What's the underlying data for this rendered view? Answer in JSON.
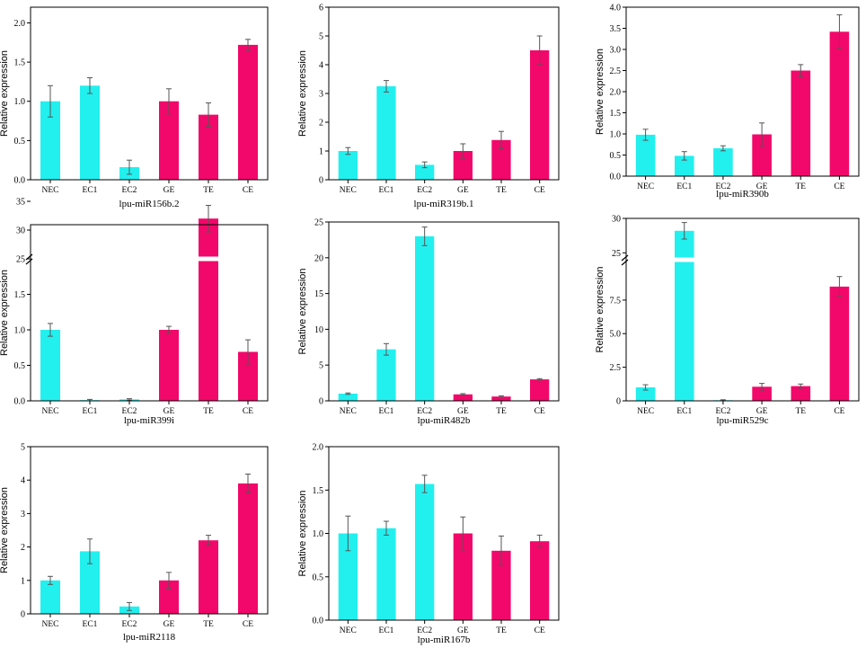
{
  "colors": {
    "group_a": "#22f0ef",
    "group_b": "#f2086a",
    "axis": "#000000",
    "error": "#555555"
  },
  "chart_data": [
    {
      "type": "bar",
      "title": "lpu-miR156b.2",
      "ylabel": "Relative expression",
      "categories": [
        "NEC",
        "EC1",
        "EC2",
        "GE",
        "TE",
        "CE"
      ],
      "values": [
        1.0,
        1.2,
        0.16,
        1.0,
        0.83,
        1.72
      ],
      "errors": [
        0.2,
        0.1,
        0.09,
        0.16,
        0.15,
        0.07
      ],
      "ylim": [
        0,
        2.2
      ],
      "yticks": [
        "0.0",
        "0.5",
        "1.0",
        "1.5",
        "2.0"
      ]
    },
    {
      "type": "bar",
      "title": "lpu-miR319b.1",
      "ylabel": "Relative expression",
      "categories": [
        "NEC",
        "EC1",
        "EC2",
        "GE",
        "TE",
        "CE"
      ],
      "values": [
        1.0,
        3.25,
        0.52,
        1.0,
        1.38,
        4.5
      ],
      "errors": [
        0.12,
        0.2,
        0.1,
        0.25,
        0.3,
        0.5
      ],
      "ylim": [
        0,
        6
      ],
      "yticks": [
        "0",
        "1",
        "2",
        "3",
        "4",
        "5",
        "6"
      ]
    },
    {
      "type": "bar",
      "title": "lpu-miR390b",
      "ylabel": "Relative expression",
      "categories": [
        "NEC",
        "EC1",
        "EC2",
        "GE",
        "TE",
        "CE"
      ],
      "values": [
        0.98,
        0.48,
        0.66,
        0.99,
        2.5,
        3.42
      ],
      "errors": [
        0.13,
        0.1,
        0.06,
        0.27,
        0.14,
        0.4
      ],
      "ylim": [
        0,
        4
      ],
      "yticks": [
        "0.0",
        "0.5",
        "1.0",
        "1.5",
        "2.0",
        "2.5",
        "3.0",
        "3.5",
        "4.0"
      ]
    },
    {
      "type": "bar",
      "title": "lpu-miR399i",
      "ylabel": "Relative expression",
      "categories": [
        "NEC",
        "EC1",
        "EC2",
        "GE",
        "TE",
        "CE"
      ],
      "values": [
        1.0,
        0.01,
        0.02,
        1.0,
        32,
        0.69
      ],
      "errors": [
        0.09,
        0.01,
        0.01,
        0.05,
        2.3,
        0.17
      ],
      "ylim": [
        0,
        35
      ],
      "axis_break": {
        "lower": [
          0,
          2
        ],
        "upper": [
          25,
          35
        ]
      },
      "yticks": [
        "0.0",
        "0.5",
        "1.0",
        "1.5",
        "25",
        "30",
        "35"
      ]
    },
    {
      "type": "bar",
      "title": "lpu-miR482b",
      "ylabel": "Relative expression",
      "categories": [
        "NEC",
        "EC1",
        "EC2",
        "GE",
        "TE",
        "CE"
      ],
      "values": [
        1.0,
        7.2,
        23.0,
        0.9,
        0.6,
        3.0
      ],
      "errors": [
        0.1,
        0.8,
        1.3,
        0.1,
        0.1,
        0.1
      ],
      "ylim": [
        0,
        25
      ],
      "yticks": [
        "0",
        "5",
        "10",
        "15",
        "20",
        "25"
      ]
    },
    {
      "type": "bar",
      "title": "lpu-miR529c",
      "ylabel": "Relative expression",
      "categories": [
        "NEC",
        "EC1",
        "EC2",
        "GE",
        "TE",
        "CE"
      ],
      "values": [
        1.0,
        28.2,
        0.05,
        1.05,
        1.1,
        8.5
      ],
      "errors": [
        0.2,
        1.2,
        0.03,
        0.25,
        0.15,
        0.75
      ],
      "ylim": [
        0,
        30
      ],
      "axis_break": {
        "lower": [
          0,
          10.5
        ],
        "upper": [
          24,
          30
        ]
      },
      "yticks": [
        "0",
        "2.5",
        "5.0",
        "7.5",
        "25",
        "30"
      ]
    },
    {
      "type": "bar",
      "title": "lpu-miR2118",
      "ylabel": "Relative expression",
      "categories": [
        "NEC",
        "EC1",
        "EC2",
        "GE",
        "TE",
        "CE"
      ],
      "values": [
        1.0,
        1.87,
        0.22,
        1.0,
        2.2,
        3.9
      ],
      "errors": [
        0.12,
        0.37,
        0.12,
        0.24,
        0.15,
        0.28
      ],
      "ylim": [
        0,
        5
      ],
      "yticks": [
        "0",
        "1",
        "2",
        "3",
        "4",
        "5"
      ]
    },
    {
      "type": "bar",
      "title": "lpu-miR167b",
      "ylabel": "Relative expression",
      "categories": [
        "NEC",
        "EC1",
        "EC2",
        "GE",
        "TE",
        "CE"
      ],
      "values": [
        1.0,
        1.06,
        1.57,
        1.0,
        0.8,
        0.91
      ],
      "errors": [
        0.2,
        0.08,
        0.1,
        0.19,
        0.17,
        0.07
      ],
      "ylim": [
        0,
        2.0
      ],
      "yticks": [
        "0.0",
        "0.5",
        "1.0",
        "1.5",
        "2.0"
      ]
    }
  ]
}
